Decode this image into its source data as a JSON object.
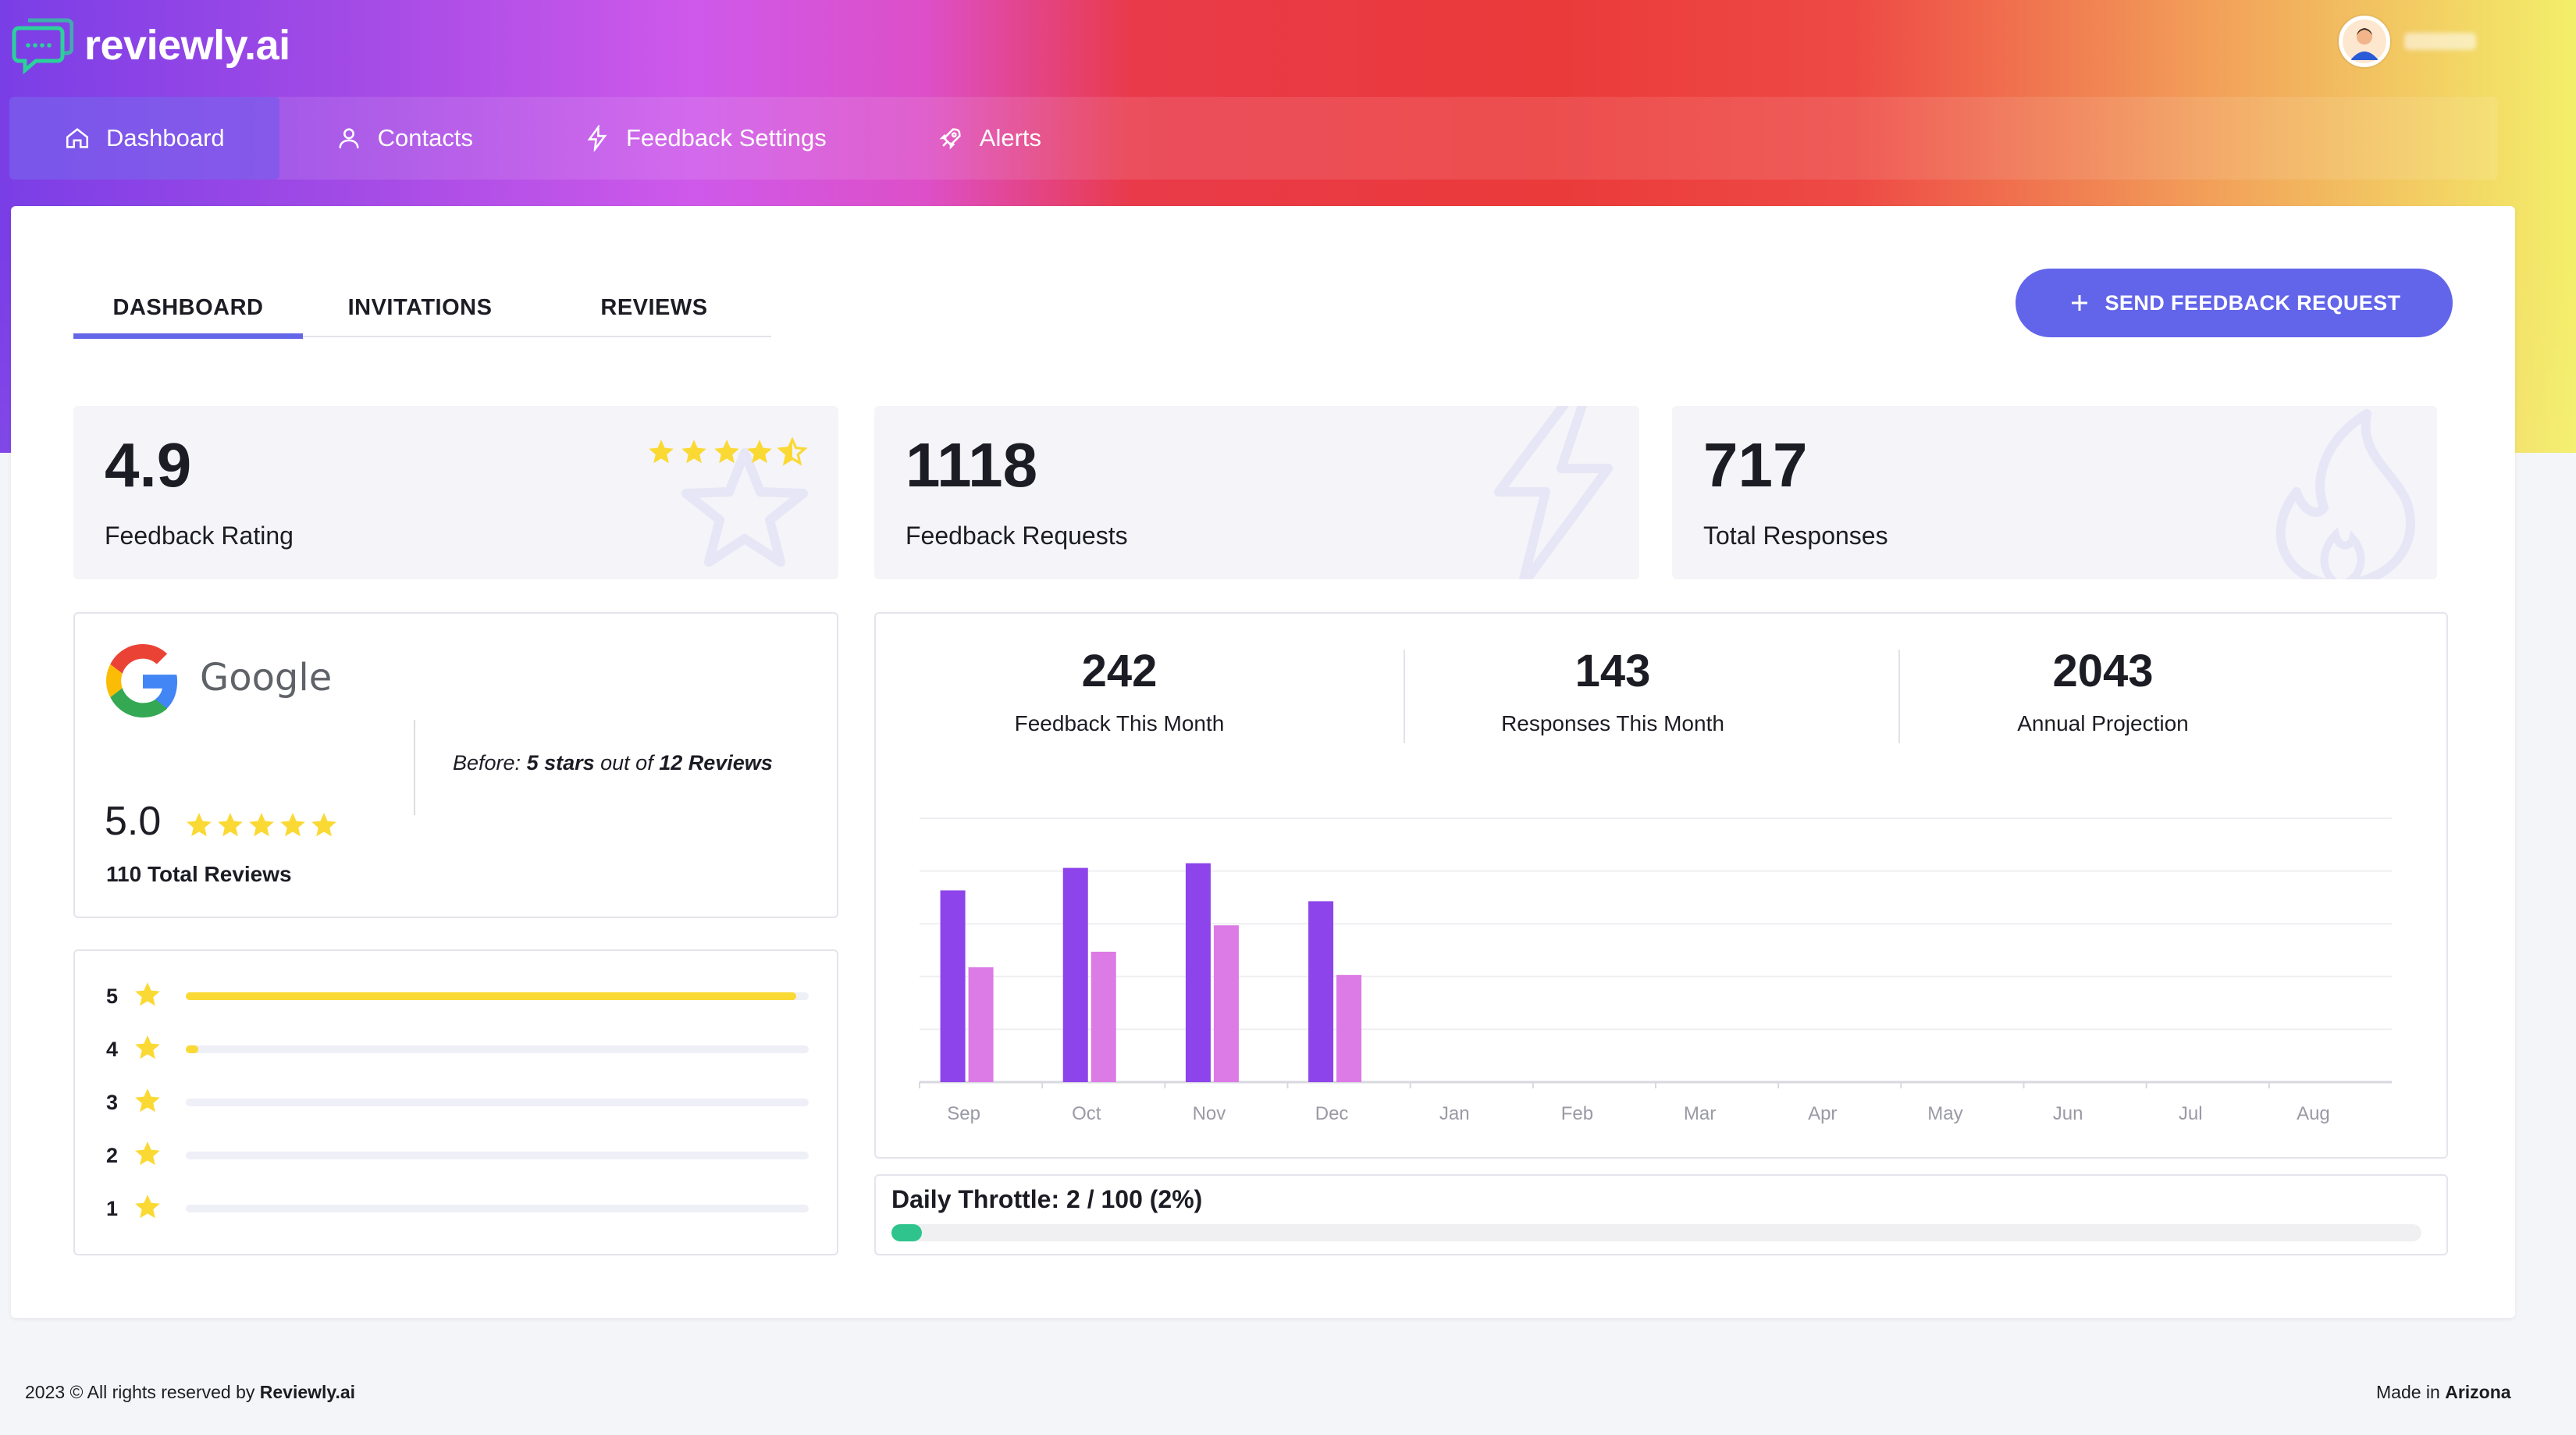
{
  "app": {
    "name": "reviewly.ai"
  },
  "nav": {
    "items": [
      {
        "label": "Dashboard",
        "icon": "home-icon",
        "active": true
      },
      {
        "label": "Contacts",
        "icon": "user-icon",
        "active": false
      },
      {
        "label": "Feedback Settings",
        "icon": "lightning-icon",
        "active": false
      },
      {
        "label": "Alerts",
        "icon": "rocket-icon",
        "active": false
      }
    ]
  },
  "tabs": [
    {
      "label": "DASHBOARD",
      "active": true
    },
    {
      "label": "INVITATIONS",
      "active": false
    },
    {
      "label": "REVIEWS",
      "active": false
    }
  ],
  "send_button": {
    "label": "SEND FEEDBACK REQUEST",
    "icon": "plus-icon"
  },
  "stats": {
    "rating": {
      "value": "4.9",
      "label": "Feedback Rating",
      "stars": 4.5
    },
    "requests": {
      "value": "1118",
      "label": "Feedback Requests"
    },
    "responses": {
      "value": "717",
      "label": "Total Responses"
    }
  },
  "google": {
    "word": "Google",
    "before_prefix": "Before: ",
    "before_stars": "5 stars",
    "before_mid": " out of ",
    "before_reviews": "12 Reviews",
    "score": "5.0",
    "stars": 5,
    "total": "110 Total Reviews"
  },
  "distribution": [
    {
      "star": "5",
      "fraction": 0.98
    },
    {
      "star": "4",
      "fraction": 0.02
    },
    {
      "star": "3",
      "fraction": 0.0
    },
    {
      "star": "2",
      "fraction": 0.0
    },
    {
      "star": "1",
      "fraction": 0.0
    }
  ],
  "kpis": [
    {
      "value": "242",
      "label": "Feedback This Month"
    },
    {
      "value": "143",
      "label": "Responses This Month"
    },
    {
      "value": "2043",
      "label": "Annual Projection"
    }
  ],
  "chart_data": {
    "type": "bar",
    "categories": [
      "Sep",
      "Oct",
      "Nov",
      "Dec",
      "Jan",
      "Feb",
      "Mar",
      "Apr",
      "May",
      "Jun",
      "Jul",
      "Aug"
    ],
    "series": [
      {
        "values": [
          247,
          276,
          282,
          233,
          0,
          0,
          0,
          0,
          0,
          0,
          0,
          0
        ],
        "color": "#8d44ea"
      },
      {
        "values": [
          148,
          168,
          202,
          138,
          0,
          0,
          0,
          0,
          0,
          0,
          0,
          0
        ],
        "color": "#dc7ae6"
      }
    ],
    "ylim": [
      0,
      340
    ],
    "grid": true
  },
  "throttle": {
    "label": "Daily Throttle: 2 / 100 (2%)",
    "fraction": 0.02,
    "color": "#2fc48e"
  },
  "footer": {
    "left_prefix": "2023 © All rights reserved by ",
    "left_brand": "Reviewly.ai",
    "right_prefix": "Made in ",
    "right_place": "Arizona"
  },
  "colors": {
    "accent": "#6265ea",
    "star": "#fbd934",
    "bar_primary": "#8d44ea",
    "bar_secondary": "#dc7ae6"
  }
}
